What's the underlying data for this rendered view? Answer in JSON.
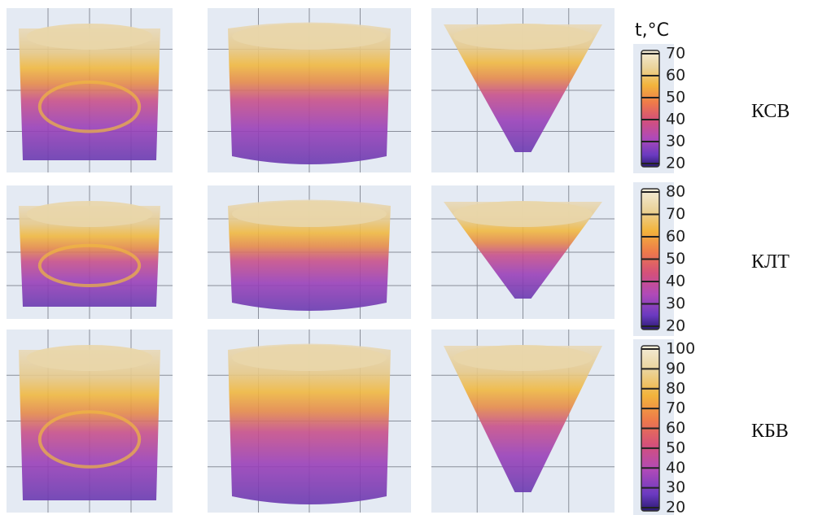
{
  "unit_label": "t,°C",
  "rows": [
    {
      "label": "КСВ",
      "scale": [
        "70",
        "60",
        "50",
        "40",
        "30",
        "20"
      ]
    },
    {
      "label": "КЛТ",
      "scale": [
        "80",
        "70",
        "60",
        "50",
        "40",
        "30",
        "20"
      ]
    },
    {
      "label": "КБВ",
      "scale": [
        "100",
        "90",
        "80",
        "70",
        "60",
        "50",
        "40",
        "30",
        "20"
      ]
    }
  ]
}
